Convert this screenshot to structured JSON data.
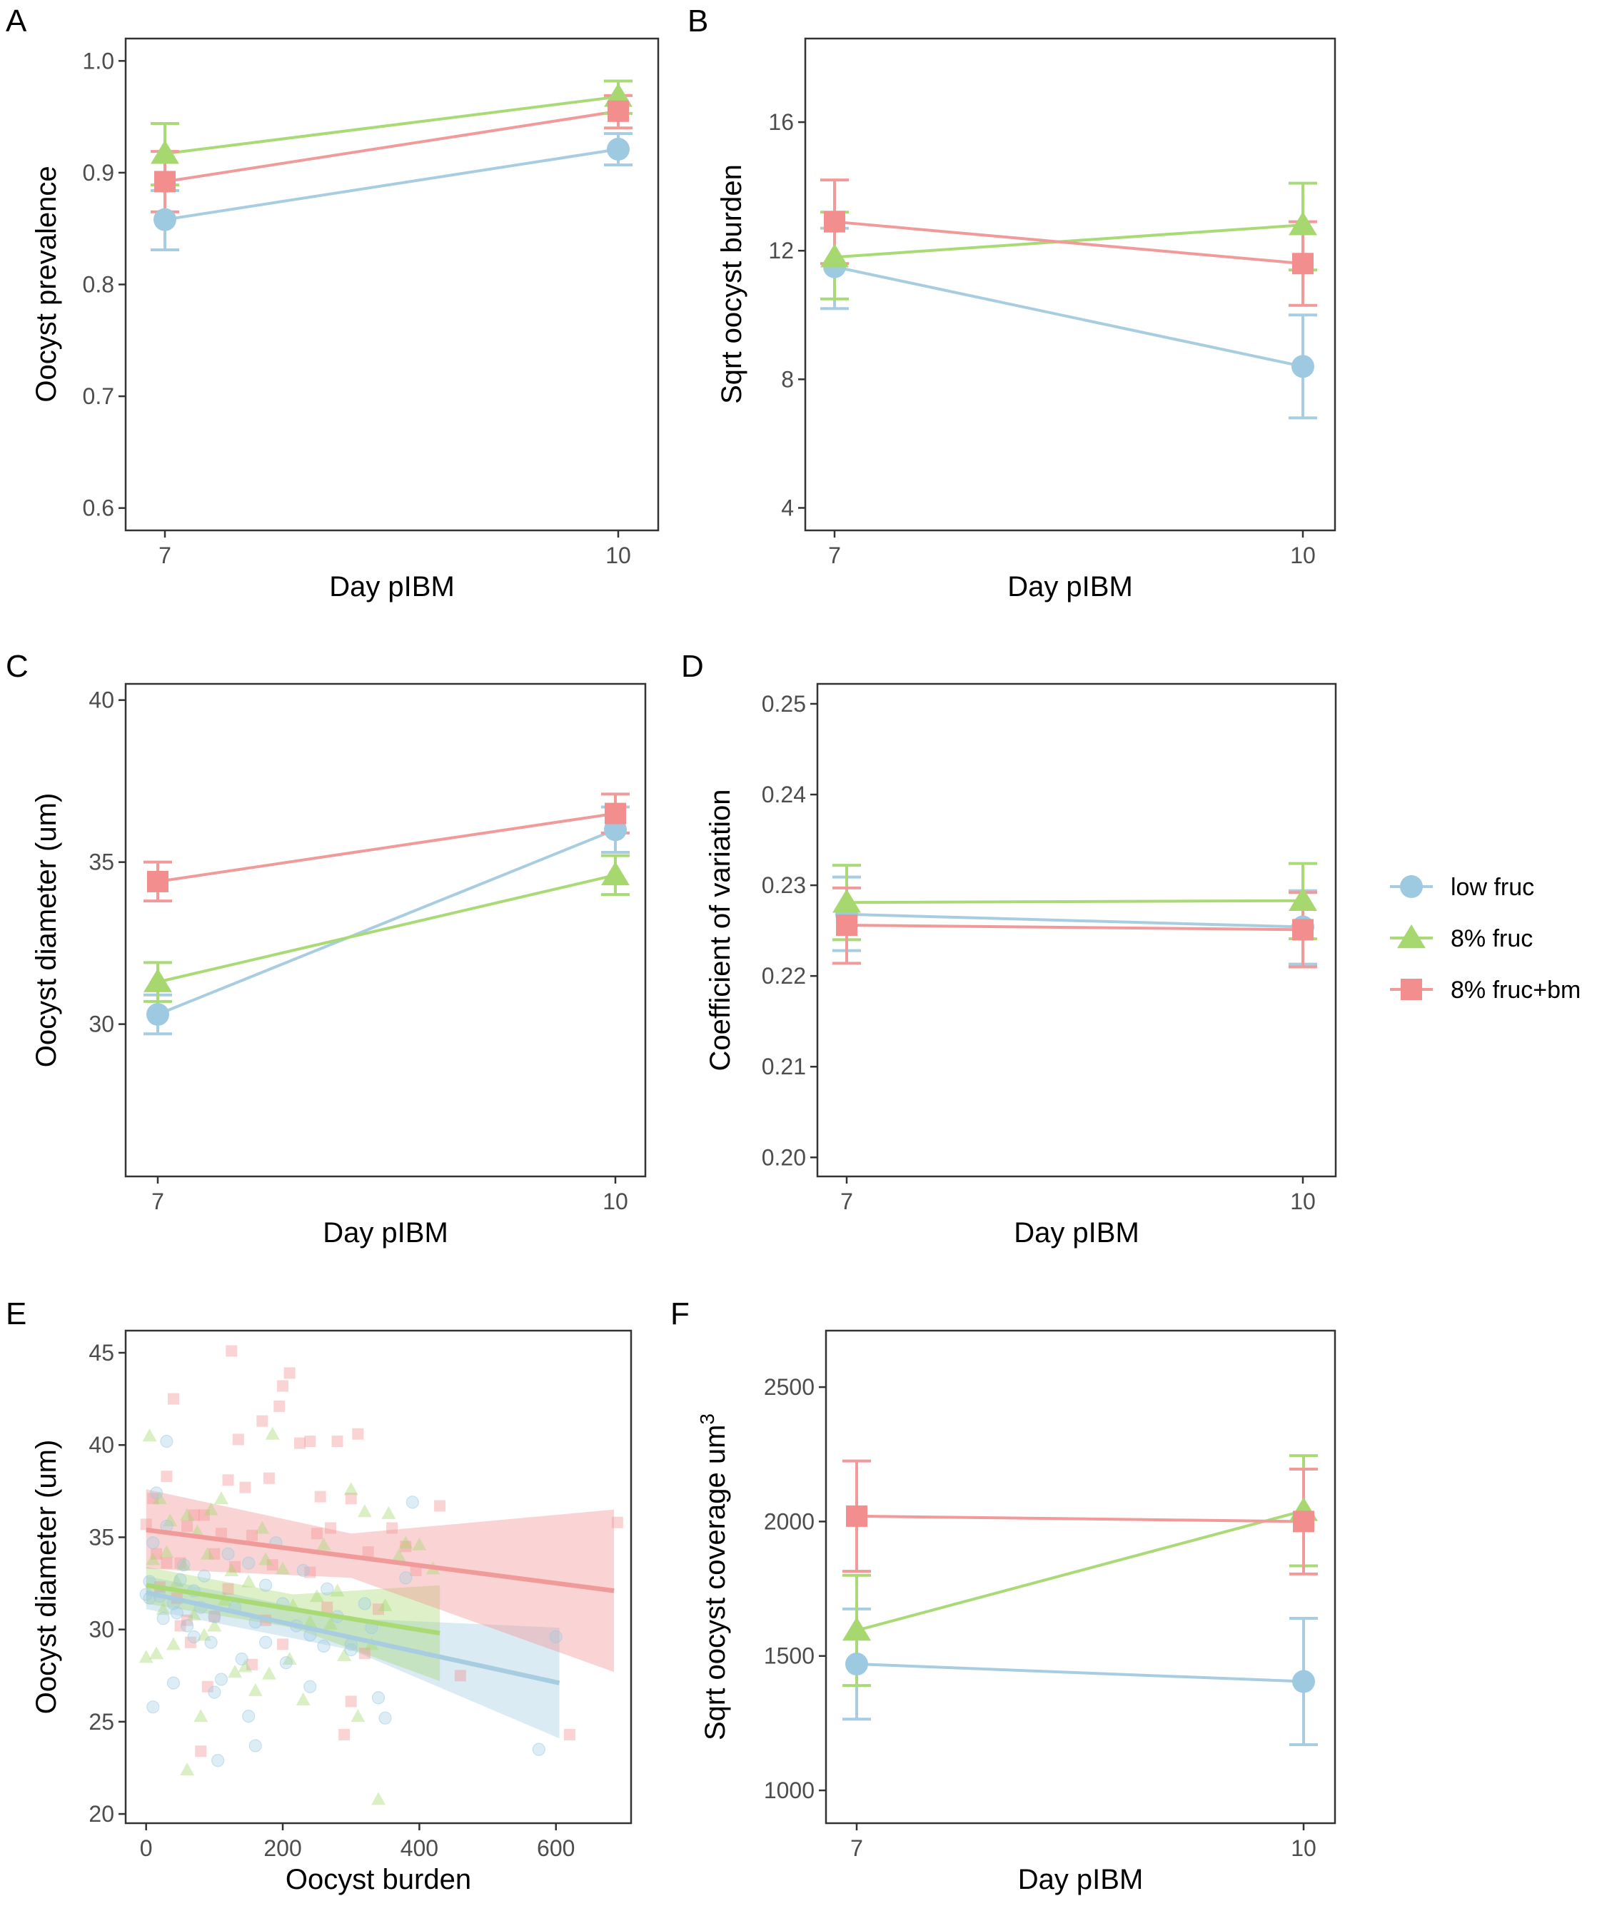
{
  "colors": {
    "low_fruc": "#9ecae1",
    "fruc8": "#a6d86f",
    "fruc8_bm": "#f28e8e",
    "low_fruc_line": "#a8cde0",
    "fruc8_line": "#a9da76",
    "fruc8_bm_line": "#f19a9a",
    "frame": "#333333",
    "tick_text": "#4d4d4d"
  },
  "legend": {
    "items": [
      {
        "key": "low_fruc",
        "label": "low fruc",
        "shape": "circle"
      },
      {
        "key": "fruc8",
        "label": "8% fruc",
        "shape": "triangle"
      },
      {
        "key": "fruc8_bm",
        "label": "8% fruc+bm",
        "shape": "square"
      }
    ]
  },
  "chart_data": [
    {
      "panel": "A",
      "type": "line",
      "xlabel": "Day pIBM",
      "ylabel": "Oocyst prevalence",
      "categories": [
        "7",
        "10"
      ],
      "ylim": [
        0.58,
        1.02
      ],
      "yticks": [
        0.6,
        0.7,
        0.8,
        0.9,
        1.0
      ],
      "ytick_labels": [
        "0.6",
        "0.7",
        "0.8",
        "0.9",
        "1.0"
      ],
      "series": [
        {
          "key": "low_fruc",
          "values": [
            0.858,
            0.921
          ],
          "lower": [
            0.831,
            0.907
          ],
          "upper": [
            0.884,
            0.935
          ]
        },
        {
          "key": "fruc8",
          "values": [
            0.917,
            0.968
          ],
          "lower": [
            0.889,
            0.953
          ],
          "upper": [
            0.944,
            0.982
          ]
        },
        {
          "key": "fruc8_bm",
          "values": [
            0.892,
            0.955
          ],
          "lower": [
            0.865,
            0.94
          ],
          "upper": [
            0.919,
            0.969
          ]
        }
      ]
    },
    {
      "panel": "B",
      "type": "line",
      "xlabel": "Day pIBM",
      "ylabel": "Sqrt oocyst burden",
      "categories": [
        "7",
        "10"
      ],
      "ylim": [
        3.3,
        18.6
      ],
      "yticks": [
        4,
        8,
        12,
        16
      ],
      "ytick_labels": [
        "4",
        "8",
        "12",
        "16"
      ],
      "series": [
        {
          "key": "low_fruc",
          "values": [
            11.5,
            8.4
          ],
          "lower": [
            10.2,
            6.8
          ],
          "upper": [
            12.7,
            10.0
          ]
        },
        {
          "key": "fruc8",
          "values": [
            11.8,
            12.8
          ],
          "lower": [
            10.5,
            11.4
          ],
          "upper": [
            13.2,
            14.1
          ]
        },
        {
          "key": "fruc8_bm",
          "values": [
            12.9,
            11.6
          ],
          "lower": [
            11.6,
            10.3
          ],
          "upper": [
            14.2,
            12.9
          ]
        }
      ]
    },
    {
      "panel": "C",
      "type": "line",
      "xlabel": "Day pIBM",
      "ylabel": "Oocyst diameter (um)",
      "categories": [
        "7",
        "10"
      ],
      "ylim": [
        25.3,
        40.5
      ],
      "yticks": [
        30,
        35,
        40
      ],
      "ytick_labels": [
        "30",
        "35",
        "40"
      ],
      "series": [
        {
          "key": "low_fruc",
          "values": [
            30.3,
            36.0
          ],
          "lower": [
            29.7,
            35.3
          ],
          "upper": [
            30.9,
            36.7
          ]
        },
        {
          "key": "fruc8",
          "values": [
            31.3,
            34.6
          ],
          "lower": [
            30.7,
            34.0
          ],
          "upper": [
            31.9,
            35.2
          ]
        },
        {
          "key": "fruc8_bm",
          "values": [
            34.4,
            36.5
          ],
          "lower": [
            33.8,
            35.9
          ],
          "upper": [
            35.0,
            37.1
          ]
        }
      ]
    },
    {
      "panel": "D",
      "type": "line",
      "xlabel": "Day pIBM",
      "ylabel": "Coefficient of variation",
      "categories": [
        "7",
        "10"
      ],
      "ylim": [
        0.1979,
        0.2522
      ],
      "yticks": [
        0.2,
        0.21,
        0.22,
        0.23,
        0.24,
        0.25
      ],
      "ytick_labels": [
        "0.20",
        "0.21",
        "0.22",
        "0.23",
        "0.24",
        "0.25"
      ],
      "series": [
        {
          "key": "low_fruc",
          "values": [
            0.2268,
            0.2254
          ],
          "lower": [
            0.2228,
            0.2213
          ],
          "upper": [
            0.2309,
            0.2294
          ]
        },
        {
          "key": "fruc8",
          "values": [
            0.2281,
            0.2283
          ],
          "lower": [
            0.224,
            0.2241
          ],
          "upper": [
            0.2322,
            0.2324
          ]
        },
        {
          "key": "fruc8_bm",
          "values": [
            0.2256,
            0.2251
          ],
          "lower": [
            0.2214,
            0.221
          ],
          "upper": [
            0.2297,
            0.2292
          ]
        }
      ]
    },
    {
      "panel": "E",
      "type": "scatter",
      "xlabel": "Oocyst burden",
      "ylabel": "Oocyst diameter (um)",
      "xlim": [
        -30,
        710
      ],
      "ylim": [
        19.5,
        46.2
      ],
      "xticks": [
        0,
        200,
        400,
        600
      ],
      "xtick_labels": [
        "0",
        "200",
        "400",
        "600"
      ],
      "yticks": [
        20,
        25,
        30,
        35,
        40,
        45
      ],
      "ytick_labels": [
        "20",
        "25",
        "30",
        "35",
        "40",
        "45"
      ],
      "fits": [
        {
          "key": "low_fruc",
          "x": [
            0,
            605
          ],
          "y": [
            32.0,
            27.1
          ],
          "band_x": [
            0,
            300,
            605
          ],
          "band_lower": [
            31.1,
            28.9,
            24.1
          ],
          "band_upper": [
            32.9,
            30.6,
            30.1
          ]
        },
        {
          "key": "fruc8",
          "x": [
            0,
            430
          ],
          "y": [
            32.4,
            29.8
          ],
          "band_x": [
            0,
            215,
            430
          ],
          "band_lower": [
            31.4,
            30.1,
            27.2
          ],
          "band_upper": [
            33.4,
            31.9,
            32.4
          ]
        },
        {
          "key": "fruc8_bm",
          "x": [
            0,
            685
          ],
          "y": [
            35.4,
            32.1
          ],
          "band_x": [
            0,
            300,
            685
          ],
          "band_lower": [
            33.3,
            32.8,
            27.7
          ],
          "band_upper": [
            37.6,
            35.2,
            36.5
          ]
        }
      ],
      "points": {
        "low_fruc": [
          [
            15,
            37.4
          ],
          [
            30,
            35.6
          ],
          [
            50,
            32.7
          ],
          [
            10,
            34.7
          ],
          [
            5,
            32.6
          ],
          [
            20,
            31.8
          ],
          [
            25,
            30.6
          ],
          [
            40,
            31.4
          ],
          [
            60,
            30.2
          ],
          [
            80,
            31.2
          ],
          [
            100,
            30.7
          ],
          [
            95,
            29.3
          ],
          [
            70,
            32.1
          ],
          [
            130,
            31.2
          ],
          [
            150,
            33.6
          ],
          [
            160,
            30.4
          ],
          [
            175,
            32.4
          ],
          [
            200,
            31.4
          ],
          [
            220,
            30.2
          ],
          [
            240,
            29.7
          ],
          [
            260,
            29.1
          ],
          [
            280,
            30.7
          ],
          [
            300,
            29.2
          ],
          [
            320,
            31.4
          ],
          [
            340,
            26.3
          ],
          [
            350,
            25.2
          ],
          [
            380,
            32.8
          ],
          [
            390,
            36.9
          ],
          [
            30,
            40.2
          ],
          [
            40,
            27.1
          ],
          [
            105,
            22.9
          ],
          [
            160,
            23.7
          ],
          [
            240,
            26.9
          ],
          [
            100,
            26.6
          ],
          [
            150,
            25.3
          ],
          [
            600,
            29.6
          ],
          [
            575,
            23.5
          ],
          [
            5,
            31.7
          ],
          [
            45,
            30.9
          ],
          [
            85,
            32.9
          ],
          [
            120,
            34.1
          ],
          [
            190,
            34.7
          ],
          [
            230,
            33.2
          ],
          [
            265,
            32.2
          ],
          [
            10,
            25.8
          ],
          [
            55,
            33.5
          ],
          [
            140,
            28.4
          ],
          [
            110,
            27.3
          ],
          [
            70,
            29.6
          ],
          [
            0,
            31.9
          ],
          [
            300,
            28.9
          ],
          [
            330,
            30.1
          ],
          [
            205,
            28.2
          ],
          [
            175,
            29.3
          ]
        ],
        "fruc8": [
          [
            5,
            40.5
          ],
          [
            20,
            37.1
          ],
          [
            30,
            34.2
          ],
          [
            45,
            32.6
          ],
          [
            60,
            36.2
          ],
          [
            75,
            35.3
          ],
          [
            90,
            34.1
          ],
          [
            110,
            37.1
          ],
          [
            125,
            33.2
          ],
          [
            150,
            32.6
          ],
          [
            170,
            35.5
          ],
          [
            185,
            40.6
          ],
          [
            200,
            33.3
          ],
          [
            215,
            31.3
          ],
          [
            240,
            30.4
          ],
          [
            260,
            34.6
          ],
          [
            280,
            32.1
          ],
          [
            300,
            37.6
          ],
          [
            320,
            36.4
          ],
          [
            340,
            20.8
          ],
          [
            355,
            36.3
          ],
          [
            370,
            34.0
          ],
          [
            400,
            34.6
          ],
          [
            420,
            33.3
          ],
          [
            15,
            28.7
          ],
          [
            40,
            29.2
          ],
          [
            60,
            22.4
          ],
          [
            80,
            25.3
          ],
          [
            100,
            30.2
          ],
          [
            130,
            27.7
          ],
          [
            160,
            26.7
          ],
          [
            180,
            27.6
          ],
          [
            210,
            28.4
          ],
          [
            230,
            26.2
          ],
          [
            270,
            30.3
          ],
          [
            290,
            28.6
          ],
          [
            310,
            25.3
          ],
          [
            330,
            29.2
          ],
          [
            350,
            31.3
          ],
          [
            380,
            34.7
          ],
          [
            10,
            33.8
          ],
          [
            25,
            31.1
          ],
          [
            55,
            33.5
          ],
          [
            85,
            29.7
          ],
          [
            115,
            31.6
          ],
          [
            145,
            28.0
          ],
          [
            0,
            28.5
          ],
          [
            35,
            35.9
          ],
          [
            70,
            30.8
          ],
          [
            95,
            36.5
          ],
          [
            175,
            33.8
          ],
          [
            250,
            31.8
          ]
        ],
        "fruc8_bm": [
          [
            0,
            35.7
          ],
          [
            10,
            37.1
          ],
          [
            20,
            32.3
          ],
          [
            30,
            38.3
          ],
          [
            40,
            42.5
          ],
          [
            50,
            33.6
          ],
          [
            60,
            35.6
          ],
          [
            70,
            36.2
          ],
          [
            85,
            36.2
          ],
          [
            90,
            26.9
          ],
          [
            100,
            34.1
          ],
          [
            120,
            38.1
          ],
          [
            125,
            45.1
          ],
          [
            135,
            40.3
          ],
          [
            145,
            37.7
          ],
          [
            155,
            35.1
          ],
          [
            170,
            41.3
          ],
          [
            180,
            38.2
          ],
          [
            195,
            42.1
          ],
          [
            200,
            43.2
          ],
          [
            210,
            43.9
          ],
          [
            225,
            40.1
          ],
          [
            240,
            40.2
          ],
          [
            255,
            37.2
          ],
          [
            270,
            35.5
          ],
          [
            280,
            40.2
          ],
          [
            300,
            37.1
          ],
          [
            310,
            40.6
          ],
          [
            325,
            34.2
          ],
          [
            340,
            31.1
          ],
          [
            360,
            35.5
          ],
          [
            380,
            34.5
          ],
          [
            395,
            33.2
          ],
          [
            430,
            36.7
          ],
          [
            460,
            27.5
          ],
          [
            620,
            24.3
          ],
          [
            690,
            35.8
          ],
          [
            300,
            26.1
          ],
          [
            290,
            24.3
          ],
          [
            200,
            29.2
          ],
          [
            175,
            30.5
          ],
          [
            155,
            28.1
          ],
          [
            120,
            32.2
          ],
          [
            100,
            30.7
          ],
          [
            80,
            23.4
          ],
          [
            65,
            29.3
          ],
          [
            50,
            30.2
          ],
          [
            45,
            31.7
          ],
          [
            30,
            33.6
          ],
          [
            15,
            34.1
          ],
          [
            110,
            35.2
          ],
          [
            185,
            33.5
          ],
          [
            240,
            33.1
          ],
          [
            265,
            31.2
          ],
          [
            320,
            28.7
          ],
          [
            250,
            35.2
          ],
          [
            60,
            30.5
          ],
          [
            130,
            33.4
          ]
        ]
      }
    },
    {
      "panel": "F",
      "type": "line",
      "xlabel": "Day pIBM",
      "ylabel": "Sqrt oocyst coverage um",
      "ylabel_sup": "3",
      "categories": [
        "7",
        "10"
      ],
      "ylim": [
        878,
        2710
      ],
      "yticks": [
        1000,
        1500,
        2000,
        2500
      ],
      "ytick_labels": [
        "1000",
        "1500",
        "2000",
        "2500"
      ],
      "series": [
        {
          "key": "low_fruc",
          "values": [
            1470,
            1405
          ],
          "lower": [
            1265,
            1170
          ],
          "upper": [
            1675,
            1640
          ]
        },
        {
          "key": "fruc8",
          "values": [
            1595,
            2040
          ],
          "lower": [
            1390,
            1835
          ],
          "upper": [
            1800,
            2245
          ]
        },
        {
          "key": "fruc8_bm",
          "values": [
            2020,
            2000
          ],
          "lower": [
            1815,
            1805
          ],
          "upper": [
            2225,
            2195
          ]
        }
      ]
    }
  ]
}
